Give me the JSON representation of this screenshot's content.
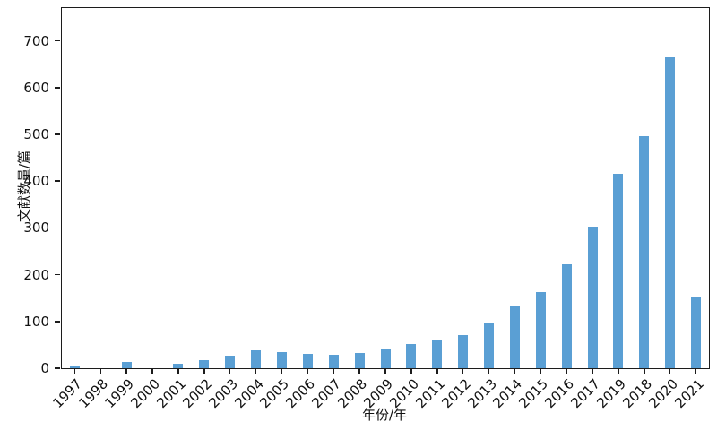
{
  "chart_data": {
    "type": "bar",
    "title": "",
    "xlabel": "年份/年",
    "ylabel": "文献数量/篇",
    "categories": [
      "1997",
      "1998",
      "1999",
      "2000",
      "2001",
      "2002",
      "2003",
      "2004",
      "2005",
      "2006",
      "2007",
      "2008",
      "2009",
      "2010",
      "2011",
      "2012",
      "2013",
      "2014",
      "2015",
      "2016",
      "2017",
      "2019",
      "2018",
      "2020",
      "2021"
    ],
    "values": [
      5,
      0,
      13,
      0,
      10,
      18,
      27,
      38,
      35,
      30,
      28,
      32,
      40,
      52,
      60,
      70,
      95,
      132,
      163,
      222,
      302,
      415,
      497,
      665,
      153
    ],
    "ylim": [
      0,
      700
    ],
    "yticks": [
      0,
      100,
      200,
      300,
      400,
      500,
      600,
      700
    ],
    "bar_color": "#5a9fd4",
    "axis_color": "#1c1c1c",
    "grid": false,
    "legend": null,
    "tick_label_rotation_deg": 45
  }
}
